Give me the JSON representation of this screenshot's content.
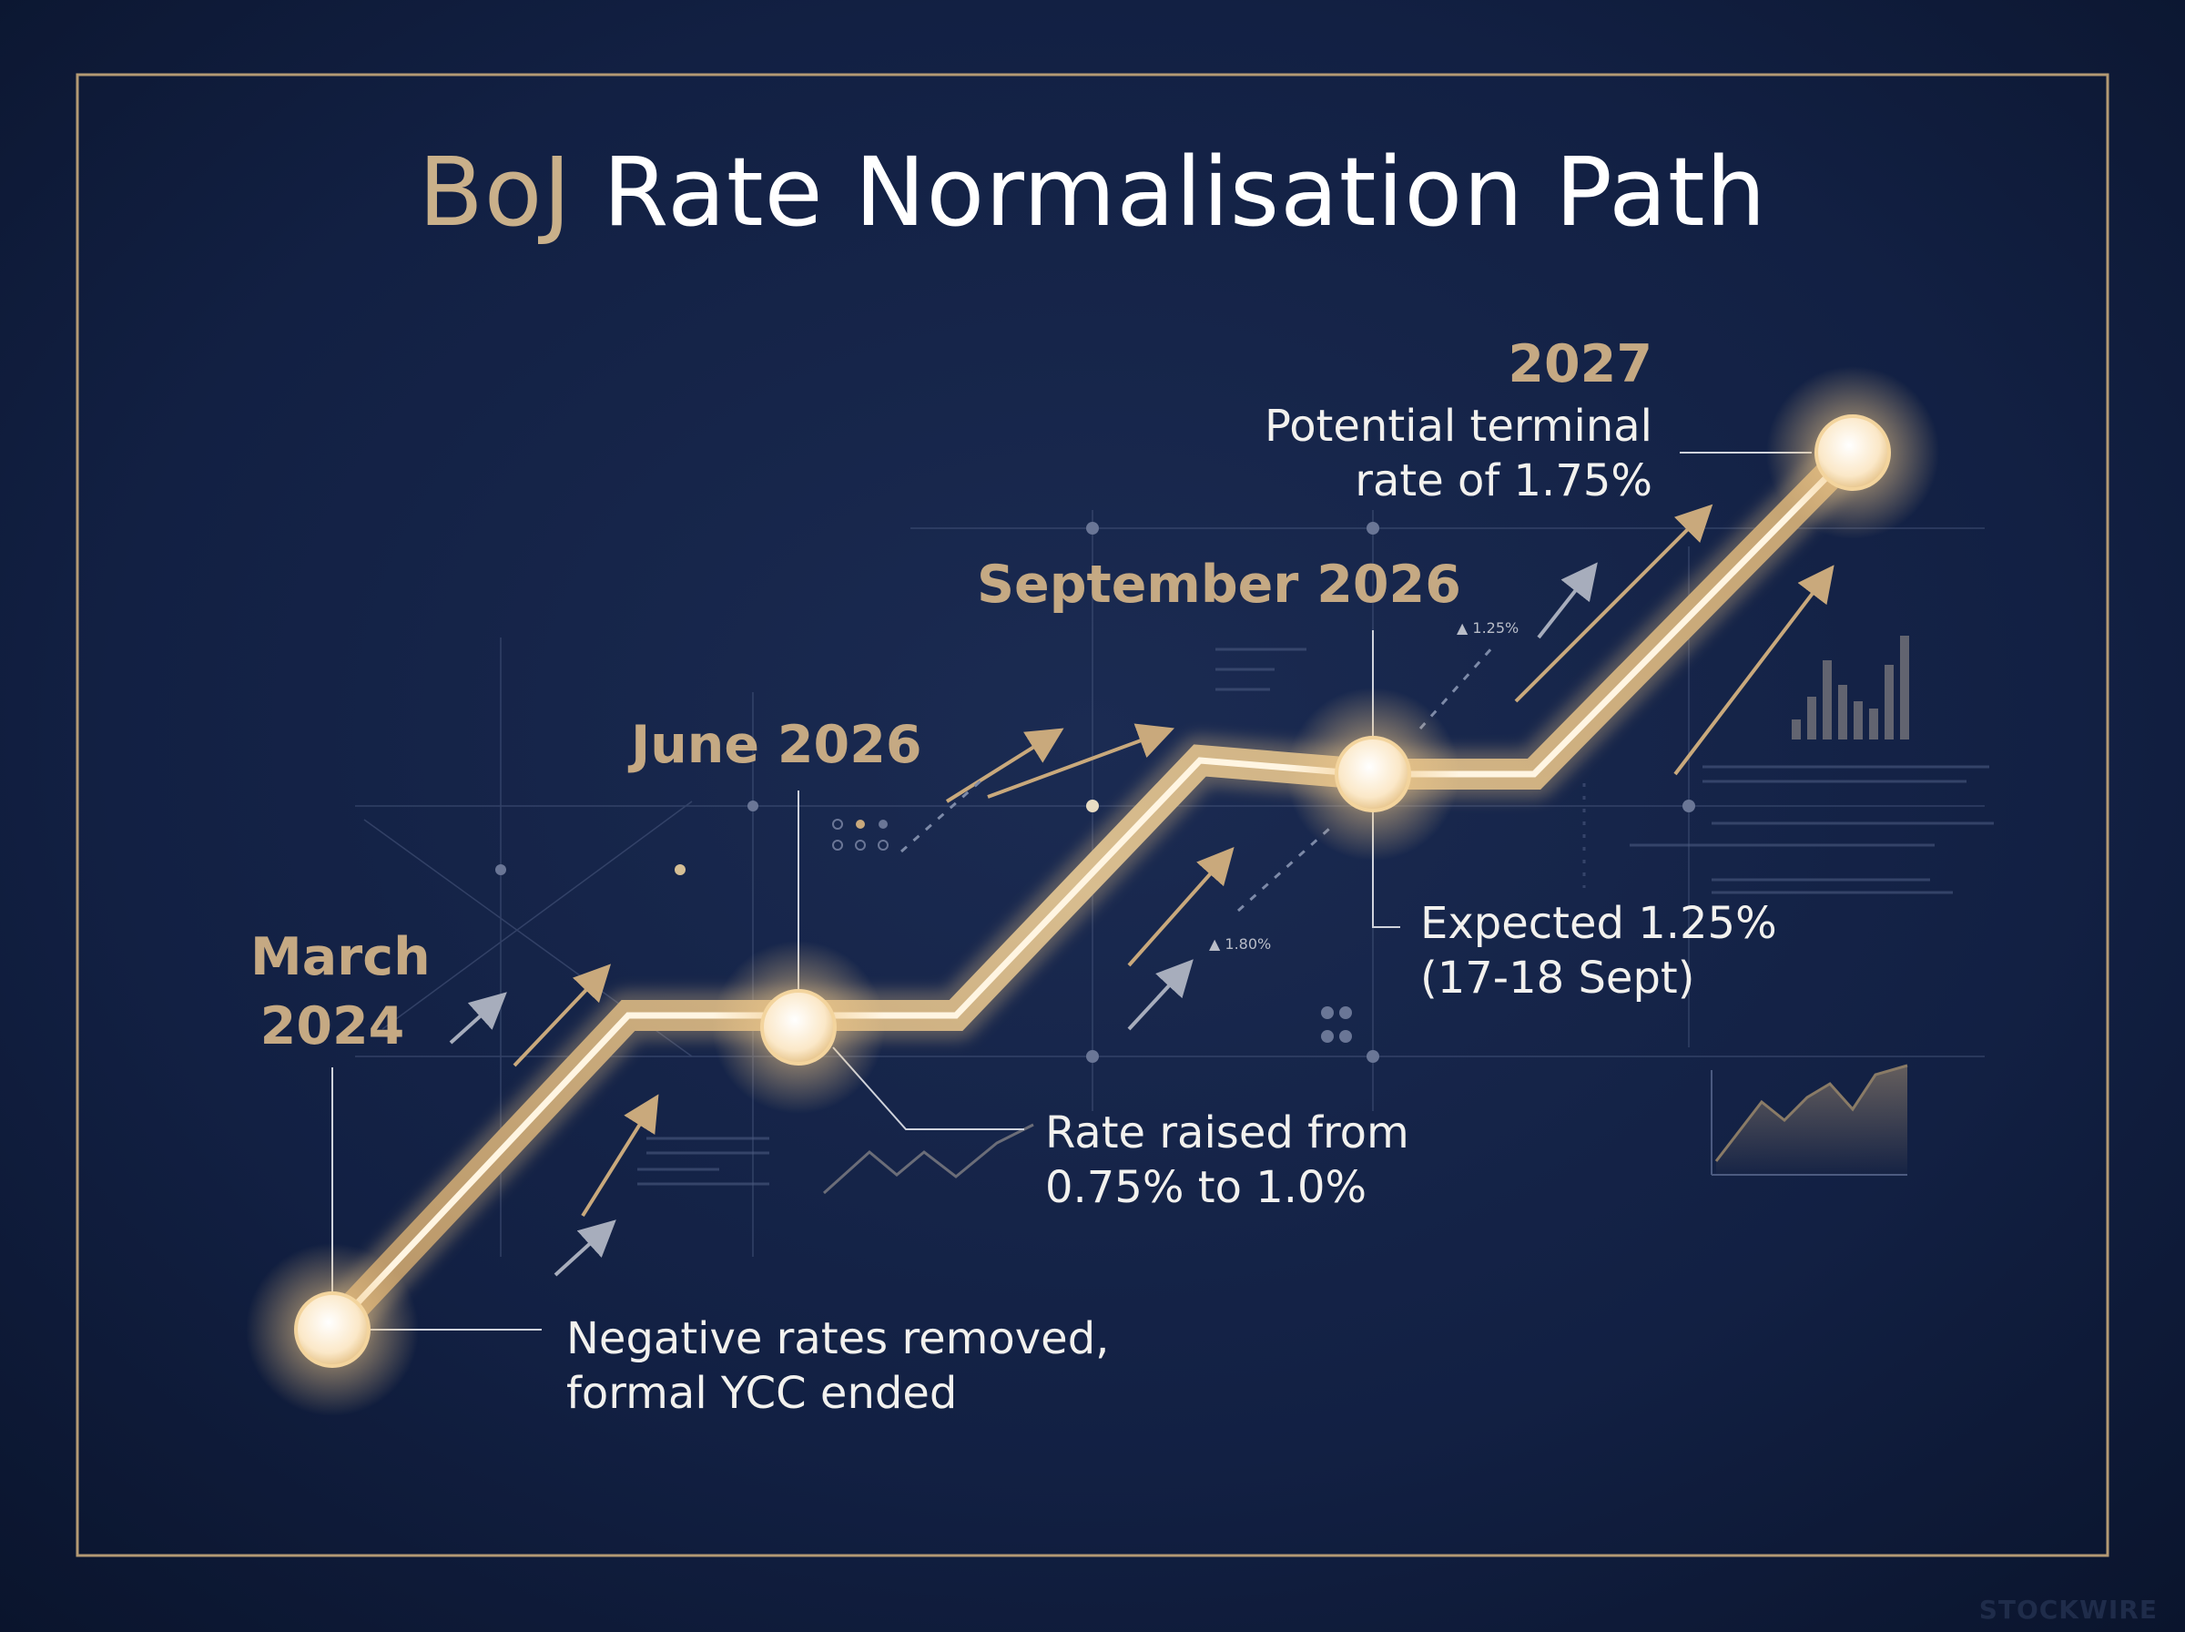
{
  "title": {
    "accent": "BoJ",
    "main": "Rate Normalisation Path"
  },
  "milestones": [
    {
      "date_line1": "March",
      "date_line2": "2024",
      "desc_line1": "Negative rates removed,",
      "desc_line2": "formal YCC ended"
    },
    {
      "date": "June 2026",
      "desc_line1": "Rate raised from",
      "desc_line2": "0.75% to 1.0%"
    },
    {
      "date": "September 2026",
      "desc_line1": "Expected 1.25%",
      "desc_line2": "(17-18 Sept)"
    },
    {
      "date": "2027",
      "desc_line1": "Potential terminal",
      "desc_line2": "rate of 1.75%"
    }
  ],
  "small_labels": {
    "upper": "▲ 1.25%",
    "lower": "▲ 1.80%"
  },
  "watermark": "STOCKWIRE",
  "colors": {
    "background": "#0d1a36",
    "gold": "#c9a97c",
    "accent_text": "#c5a983",
    "text": "#f2f1ee"
  }
}
